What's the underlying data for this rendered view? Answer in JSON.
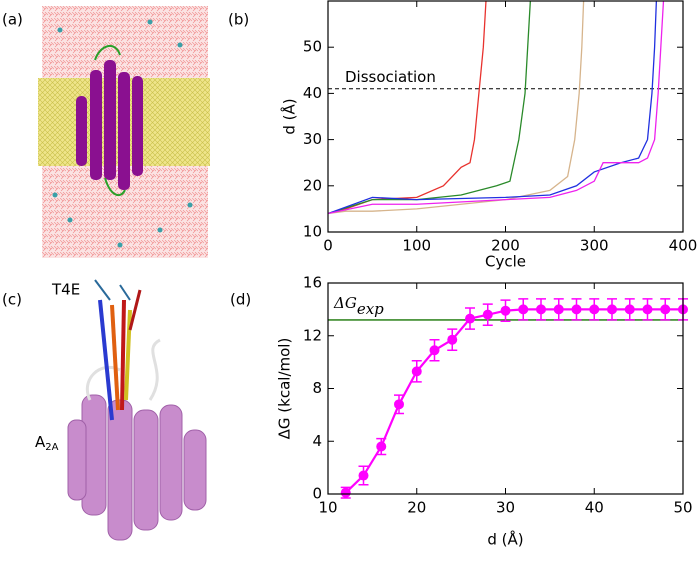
{
  "panels": {
    "a": {
      "label": "(a)"
    },
    "c": {
      "label": "(c)",
      "ligand": "T4E",
      "receptor": "A",
      "receptor_sub": "2A"
    }
  },
  "chart_data": [
    {
      "type": "line",
      "label": "(b)",
      "xlabel": "Cycle",
      "ylabel": "d (Å)",
      "xlim": [
        0,
        400
      ],
      "ylim": [
        10,
        60
      ],
      "xticks": [
        0,
        100,
        200,
        300,
        400
      ],
      "yticks": [
        10,
        20,
        30,
        40,
        50
      ],
      "hline": {
        "value": 41,
        "label": "Dissociation",
        "color": "#000000",
        "dashed": true
      },
      "series": [
        {
          "color": "#e8322e",
          "x": [
            0,
            20,
            50,
            100,
            130,
            150,
            160,
            165,
            170,
            175,
            178
          ],
          "values": [
            14,
            15,
            17,
            17.5,
            20,
            24,
            25,
            30,
            40,
            50,
            60
          ]
        },
        {
          "color": "#2a8a2a",
          "x": [
            0,
            50,
            100,
            150,
            190,
            205,
            215,
            222,
            225,
            228
          ],
          "values": [
            14,
            17,
            17,
            18,
            20,
            21,
            30,
            40,
            50,
            60
          ]
        },
        {
          "color": "#d6b48c",
          "x": [
            0,
            20,
            50,
            100,
            200,
            250,
            270,
            278,
            283,
            286,
            288
          ],
          "values": [
            14,
            14.5,
            14.5,
            15,
            17,
            19,
            22,
            30,
            40,
            50,
            60
          ]
        },
        {
          "color": "#2030e0",
          "x": [
            0,
            50,
            100,
            200,
            250,
            280,
            300,
            330,
            350,
            360,
            365,
            368,
            370
          ],
          "values": [
            14,
            17.5,
            17,
            17.5,
            18,
            20,
            23,
            25,
            26,
            30,
            40,
            50,
            60
          ]
        },
        {
          "color": "#ee22ee",
          "x": [
            0,
            50,
            100,
            200,
            250,
            280,
            300,
            310,
            350,
            360,
            368,
            372,
            375,
            378
          ],
          "values": [
            14,
            16,
            16,
            17,
            17.5,
            19,
            21,
            25,
            25,
            26,
            30,
            40,
            50,
            60
          ]
        }
      ]
    },
    {
      "type": "errorline",
      "label": "(d)",
      "xlabel": "d (Å)",
      "ylabel": "ΔG (kcal/mol)",
      "xlim": [
        10,
        50
      ],
      "ylim": [
        0,
        16
      ],
      "xticks": [
        10,
        20,
        30,
        40,
        50
      ],
      "yticks": [
        0,
        4,
        8,
        12,
        16
      ],
      "hline": {
        "value": 13.2,
        "label": "ΔG",
        "label_sub": "exp",
        "color": "#3a8a2a",
        "dashed": false
      },
      "series": [
        {
          "color": "#ff00ff",
          "x": [
            12,
            14,
            16,
            18,
            20,
            22,
            24,
            26,
            28,
            30,
            32,
            34,
            36,
            38,
            40,
            42,
            44,
            46,
            48,
            50
          ],
          "values": [
            0.1,
            1.4,
            3.6,
            6.8,
            9.3,
            10.9,
            11.7,
            13.3,
            13.6,
            13.9,
            14,
            14,
            14,
            14,
            14,
            14,
            14,
            14,
            14,
            14
          ],
          "errors": [
            0.4,
            0.7,
            0.6,
            0.7,
            0.8,
            0.8,
            0.8,
            0.8,
            0.8,
            0.8,
            0.8,
            0.8,
            0.8,
            0.8,
            0.8,
            0.8,
            0.8,
            0.8,
            0.8,
            0.8
          ]
        }
      ]
    }
  ]
}
